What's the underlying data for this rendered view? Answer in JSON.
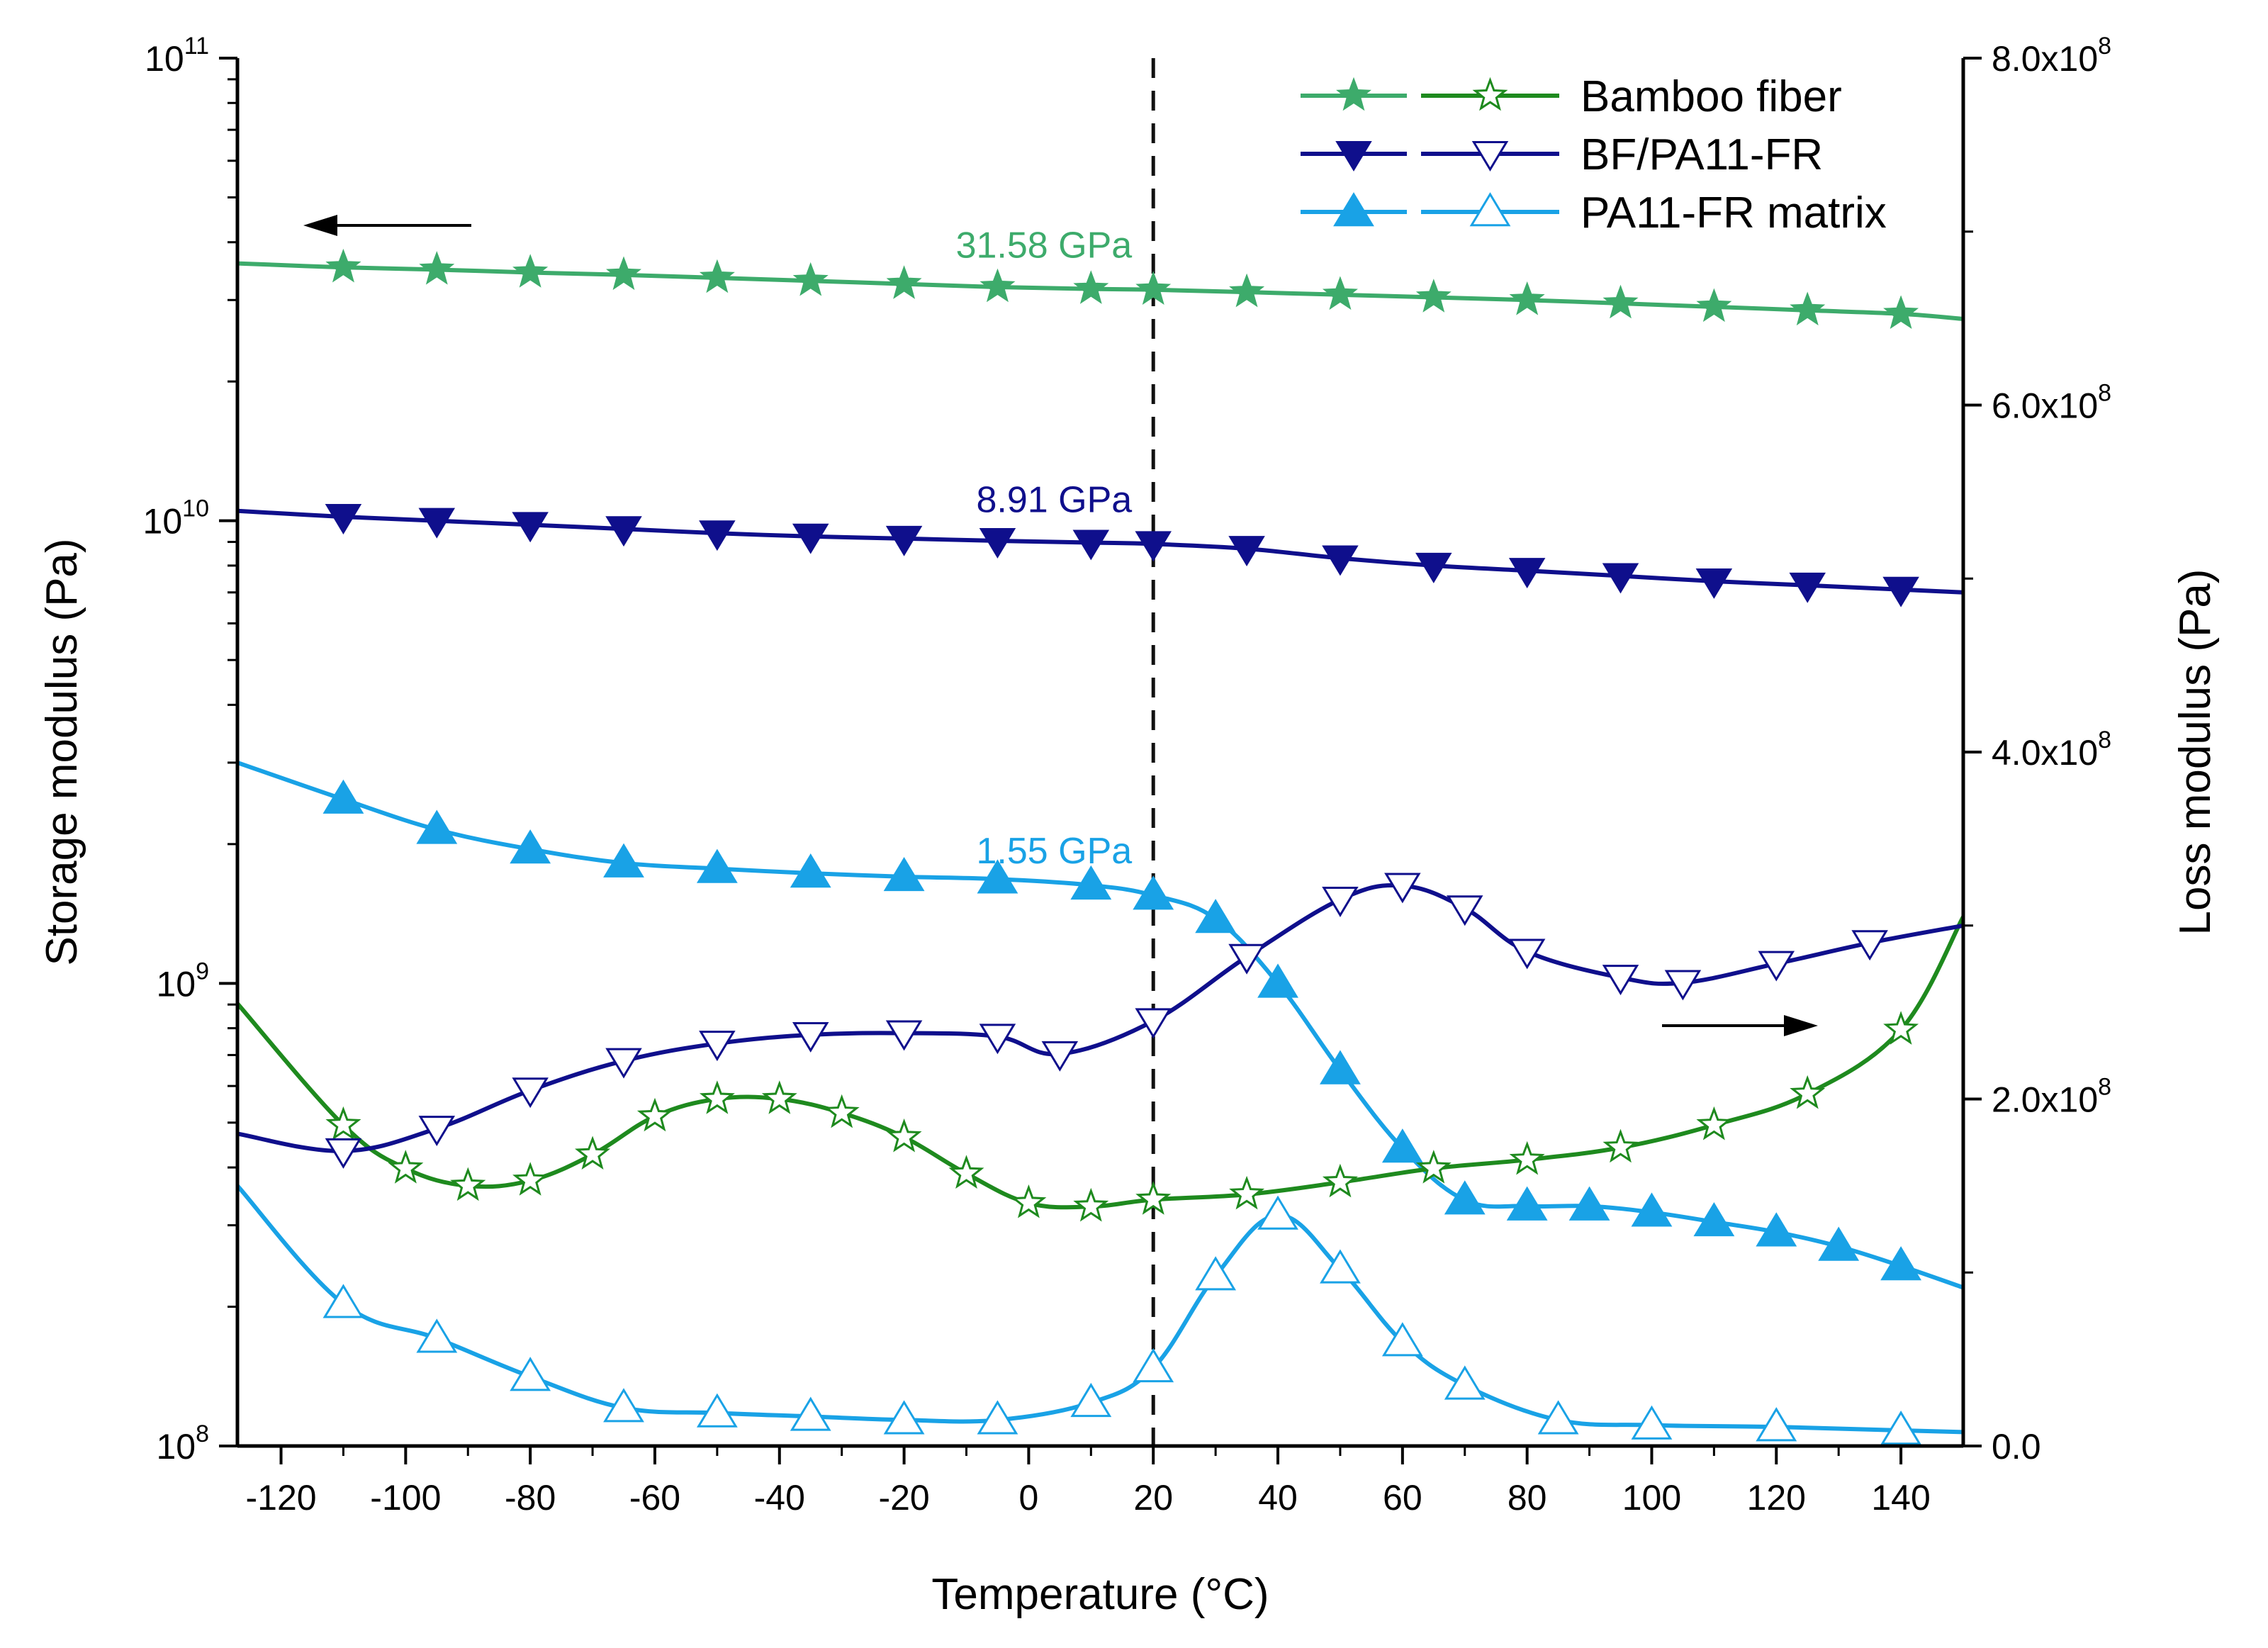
{
  "chart_data": {
    "type": "line",
    "xlabel": "Temperature (°C)",
    "ylabel_left": "Storage modulus (Pa)",
    "ylabel_right": "Loss modulus (Pa)",
    "xlim": [
      -127,
      150
    ],
    "ylim_left": [
      100000000,
      100000000000
    ],
    "ylim_right": [
      0,
      800000000
    ],
    "yscale_left": "log",
    "yscale_right": "linear",
    "x_ticks": [
      -120,
      -100,
      -80,
      -60,
      -40,
      -20,
      0,
      20,
      40,
      60,
      80,
      100,
      120,
      140
    ],
    "x_tick_labels": [
      "-120",
      "-100",
      "-80",
      "-60",
      "-40",
      "-20",
      "0",
      "20",
      "40",
      "60",
      "80",
      "100",
      "120",
      "140"
    ],
    "y_left_ticks": [
      {
        "value": 100000000,
        "base": "10",
        "exp": "8"
      },
      {
        "value": 1000000000,
        "base": "10",
        "exp": "9"
      },
      {
        "value": 10000000000,
        "base": "10",
        "exp": "10"
      },
      {
        "value": 100000000000,
        "base": "10",
        "exp": "11"
      }
    ],
    "y_right_ticks": [
      {
        "value": 0,
        "text": "0.0",
        "exp": ""
      },
      {
        "value": 200000000,
        "text": "2.0x10",
        "exp": "8"
      },
      {
        "value": 400000000,
        "text": "4.0x10",
        "exp": "8"
      },
      {
        "value": 600000000,
        "text": "6.0x10",
        "exp": "8"
      },
      {
        "value": 800000000,
        "text": "8.0x10",
        "exp": "8"
      }
    ],
    "vline_x": 20,
    "grid": false,
    "legend_position": "top-right",
    "legend": [
      {
        "label": "Bamboo fiber",
        "color_storage": "#3dab6b",
        "color_loss": "#1e8a1e",
        "marker": "star"
      },
      {
        "label": "BF/PA11-FR",
        "color_storage": "#0f0f8c",
        "color_loss": "#0f0f8c",
        "marker": "triangle-down"
      },
      {
        "label": "PA11-FR matrix",
        "color_storage": "#19a2e6",
        "color_loss": "#19a2e6",
        "marker": "triangle-up"
      }
    ],
    "series": [
      {
        "name": "Bamboo fiber",
        "property": "storage",
        "axis": "left",
        "color": "#3dab6b",
        "marker": "star",
        "filled": true,
        "x": [
          -127,
          -110,
          -95,
          -80,
          -65,
          -50,
          -35,
          -20,
          -5,
          10,
          20,
          35,
          50,
          65,
          80,
          95,
          110,
          125,
          140,
          150
        ],
        "y": [
          36000000000,
          35300000000,
          34900000000,
          34400000000,
          34000000000,
          33500000000,
          33000000000,
          32500000000,
          32000000000,
          31700000000,
          31580000000,
          31200000000,
          30800000000,
          30400000000,
          30000000000,
          29500000000,
          29000000000,
          28500000000,
          28000000000,
          27300000000
        ]
      },
      {
        "name": "BF/PA11-FR",
        "property": "storage",
        "axis": "left",
        "color": "#0f0f8c",
        "marker": "triangle-down",
        "filled": true,
        "x": [
          -127,
          -110,
          -95,
          -80,
          -65,
          -50,
          -35,
          -20,
          -5,
          10,
          20,
          35,
          50,
          65,
          80,
          95,
          110,
          125,
          140,
          150
        ],
        "y": [
          10500000000,
          10200000000,
          10000000000,
          9800000000,
          9600000000,
          9400000000,
          9250000000,
          9150000000,
          9050000000,
          8970000000,
          8910000000,
          8700000000,
          8300000000,
          8000000000,
          7800000000,
          7600000000,
          7400000000,
          7250000000,
          7100000000,
          7000000000
        ]
      },
      {
        "name": "PA11-FR matrix",
        "property": "storage",
        "axis": "left",
        "color": "#19a2e6",
        "marker": "triangle-up",
        "filled": true,
        "x": [
          -127,
          -110,
          -95,
          -80,
          -65,
          -50,
          -35,
          -20,
          -5,
          10,
          20,
          30,
          40,
          50,
          60,
          70,
          80,
          90,
          100,
          110,
          120,
          130,
          140,
          150
        ],
        "y": [
          3000000000,
          2500000000,
          2150000000,
          1950000000,
          1820000000,
          1770000000,
          1730000000,
          1700000000,
          1680000000,
          1630000000,
          1550000000,
          1380000000,
          1000000000,
          650000000,
          440000000,
          340000000,
          330000000,
          330000000,
          320000000,
          305000000,
          290000000,
          270000000,
          245000000,
          220000000
        ]
      },
      {
        "name": "Bamboo fiber",
        "property": "loss",
        "axis": "right",
        "color": "#1e8a1e",
        "marker": "star",
        "filled": false,
        "x": [
          -127,
          -110,
          -100,
          -90,
          -80,
          -70,
          -60,
          -50,
          -40,
          -30,
          -20,
          -10,
          0,
          10,
          20,
          35,
          50,
          65,
          80,
          95,
          110,
          125,
          140,
          150
        ],
        "y": [
          255000000,
          185000000,
          160000000,
          150000000,
          153000000,
          168000000,
          190000000,
          200000000,
          200000000,
          192000000,
          178000000,
          157000000,
          140000000,
          138000000,
          142000000,
          145000000,
          152000000,
          160000000,
          165000000,
          172000000,
          185000000,
          203000000,
          240000000,
          305000000
        ]
      },
      {
        "name": "BF/PA11-FR",
        "property": "loss",
        "axis": "right",
        "color": "#0f0f8c",
        "marker": "triangle-down",
        "filled": false,
        "x": [
          -127,
          -110,
          -95,
          -80,
          -65,
          -50,
          -35,
          -20,
          -5,
          5,
          20,
          35,
          50,
          60,
          70,
          80,
          95,
          105,
          120,
          135,
          150
        ],
        "y": [
          180000000,
          170000000,
          183000000,
          205000000,
          222000000,
          232000000,
          237000000,
          238000000,
          236000000,
          226000000,
          245000000,
          282000000,
          315000000,
          323000000,
          310000000,
          285000000,
          270000000,
          267000000,
          278000000,
          290000000,
          300000000
        ]
      },
      {
        "name": "PA11-FR matrix",
        "property": "loss",
        "axis": "right",
        "color": "#19a2e6",
        "marker": "triangle-up",
        "filled": false,
        "x": [
          -127,
          -110,
          -95,
          -80,
          -65,
          -50,
          -35,
          -20,
          -5,
          10,
          20,
          30,
          40,
          50,
          60,
          70,
          85,
          100,
          120,
          140,
          150
        ],
        "y": [
          150000000,
          82000000,
          62000000,
          40000000,
          22000000,
          19000000,
          17000000,
          15000000,
          15000000,
          25000000,
          45000000,
          98000000,
          133000000,
          102000000,
          60000000,
          35000000,
          15000000,
          12000000,
          11000000,
          9000000,
          8000000
        ]
      }
    ],
    "annotations": [
      {
        "text": "31.58 GPa",
        "x": 20,
        "y": 31580000000,
        "color": "#3dab6b"
      },
      {
        "text": "8.91 GPa",
        "x": 20,
        "y": 8910000000,
        "color": "#0f0f8c"
      },
      {
        "text": "1.55 GPa",
        "x": 20,
        "y": 1550000000,
        "color": "#19a2e6"
      }
    ]
  }
}
